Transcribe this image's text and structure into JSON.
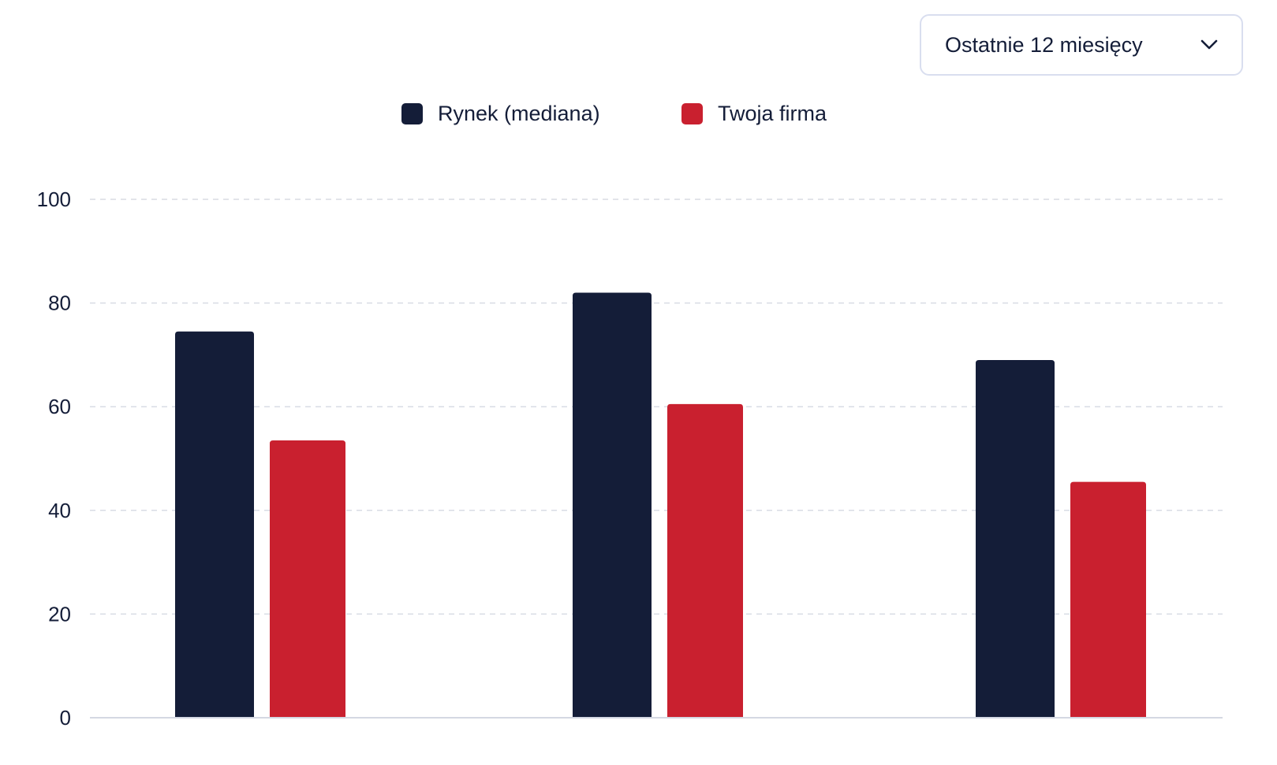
{
  "period_select": {
    "label": "Ostatnie 12 miesięcy",
    "icon": "chevron-down-icon"
  },
  "colors": {
    "market": "#141d38",
    "company": "#c9202f",
    "grid": "#d9dce4",
    "axis": "#d4d8e3",
    "border": "#d9deef"
  },
  "chart_data": {
    "type": "bar",
    "categories": [
      "",
      "",
      ""
    ],
    "series": [
      {
        "name": "Rynek (mediana)",
        "color": "#141d38",
        "values": [
          74.5,
          82,
          69
        ]
      },
      {
        "name": "Twoja firma",
        "color": "#c9202f",
        "values": [
          53.5,
          60.5,
          45.5
        ]
      }
    ],
    "ylim": [
      0,
      100
    ],
    "yticks": [
      "0",
      "20",
      "40",
      "60",
      "80",
      "100"
    ],
    "grid": true,
    "legend_position": "top-center",
    "title": "",
    "xlabel": "",
    "ylabel": ""
  }
}
